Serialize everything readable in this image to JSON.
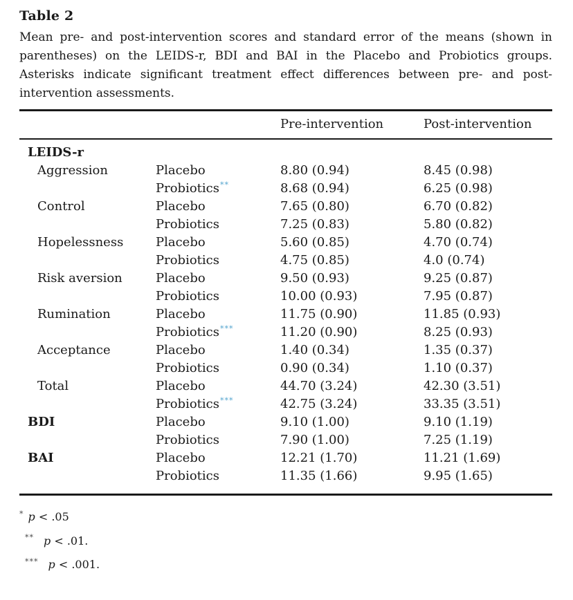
{
  "title": "Table 2",
  "caption_lines": [
    "Mean pre- and post-intervention scores and standard error of the means (shown in",
    "parentheses) on the LEIDS-r, BDI and BAI in the Placebo and Probiotics groups.",
    "Asterisks indicate significant treatment effect differences between pre- and post-",
    "intervention assessments."
  ],
  "columns": {
    "pre": "Pre-intervention",
    "post": "Post-intervention"
  },
  "rows": [
    {
      "label": "LEIDS-r",
      "bold": true,
      "group": "",
      "stars": "",
      "pre": "",
      "post": ""
    },
    {
      "label": "Aggression",
      "bold": false,
      "group": "Placebo",
      "stars": "",
      "pre": "8.80 (0.94)",
      "post": "8.45 (0.98)"
    },
    {
      "label": "",
      "bold": false,
      "group": "Probiotics",
      "stars": "**",
      "pre": "8.68 (0.94)",
      "post": "6.25 (0.98)"
    },
    {
      "label": "Control",
      "bold": false,
      "group": "Placebo",
      "stars": "",
      "pre": "7.65 (0.80)",
      "post": "6.70 (0.82)"
    },
    {
      "label": "",
      "bold": false,
      "group": "Probiotics",
      "stars": "",
      "pre": "7.25 (0.83)",
      "post": "5.80 (0.82)"
    },
    {
      "label": "Hopelessness",
      "bold": false,
      "group": "Placebo",
      "stars": "",
      "pre": "5.60 (0.85)",
      "post": "4.70 (0.74)"
    },
    {
      "label": "",
      "bold": false,
      "group": "Probiotics",
      "stars": "",
      "pre": "4.75 (0.85)",
      "post": "4.0 (0.74)"
    },
    {
      "label": "Risk aversion",
      "bold": false,
      "group": "Placebo",
      "stars": "",
      "pre": "9.50 (0.93)",
      "post": "9.25 (0.87)"
    },
    {
      "label": "",
      "bold": false,
      "group": "Probiotics",
      "stars": "",
      "pre": "10.00 (0.93)",
      "post": "7.95 (0.87)"
    },
    {
      "label": "Rumination",
      "bold": false,
      "group": "Placebo",
      "stars": "",
      "pre": "11.75 (0.90)",
      "post": "11.85 (0.93)"
    },
    {
      "label": "",
      "bold": false,
      "group": "Probiotics",
      "stars": "***",
      "pre": "11.20 (0.90)",
      "post": "8.25 (0.93)"
    },
    {
      "label": "Acceptance",
      "bold": false,
      "group": "Placebo",
      "stars": "",
      "pre": "1.40 (0.34)",
      "post": "1.35 (0.37)"
    },
    {
      "label": "",
      "bold": false,
      "group": "Probiotics",
      "stars": "",
      "pre": "0.90 (0.34)",
      "post": "1.10 (0.37)"
    },
    {
      "label": "Total",
      "bold": false,
      "group": "Placebo",
      "stars": "",
      "pre": "44.70 (3.24)",
      "post": "42.30 (3.51)"
    },
    {
      "label": "",
      "bold": false,
      "group": "Probiotics",
      "stars": "***",
      "pre": "42.75 (3.24)",
      "post": "33.35 (3.51)"
    },
    {
      "label": "BDI",
      "bold": true,
      "group": "Placebo",
      "stars": "",
      "pre": "9.10 (1.00)",
      "post": "9.10 (1.19)"
    },
    {
      "label": "",
      "bold": false,
      "group": "Probiotics",
      "stars": "",
      "pre": "7.90 (1.00)",
      "post": "7.25 (1.19)"
    },
    {
      "label": "BAI",
      "bold": true,
      "group": "Placebo",
      "stars": "",
      "pre": "12.21 (1.70)",
      "post": "11.21 (1.69)"
    },
    {
      "label": "",
      "bold": false,
      "group": "Probiotics",
      "stars": "",
      "pre": "11.35 (1.66)",
      "post": "9.95 (1.65)"
    }
  ],
  "footnotes": [
    {
      "marker": "*",
      "p": "p",
      "rest": " < .05"
    },
    {
      "marker": "**",
      "p": "p",
      "rest": " < .01."
    },
    {
      "marker": "***",
      "p": "p",
      "rest": " < .001."
    }
  ],
  "colors": {
    "asterisk_blue": "#55a5cf",
    "footnote_marker": "#4a4a4a",
    "text": "#1a1a1a",
    "background": "#ffffff"
  }
}
